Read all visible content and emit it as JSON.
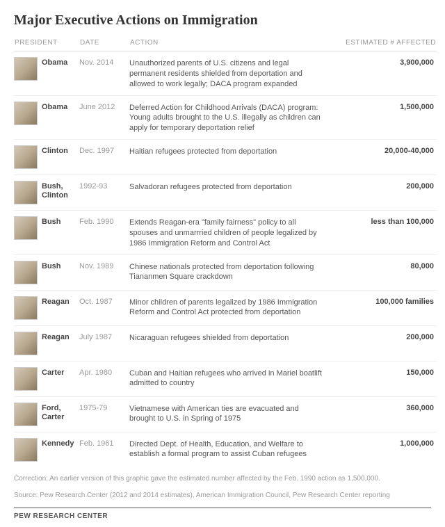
{
  "title": "Major Executive Actions on Immigration",
  "headers": {
    "president": "PRESIDENT",
    "date": "DATE",
    "action": "ACTION",
    "estimated": "ESTIMATED # AFFECTED"
  },
  "rows": [
    {
      "president": "Obama",
      "date": "Nov. 2014",
      "action": "Unauthorized parents of U.S. citizens and legal permanent residents shielded from deportation and allowed to work legally; DACA program expanded",
      "estimated": "3,900,000"
    },
    {
      "president": "Obama",
      "date": "June 2012",
      "action": "Deferred Action for Childhood Arrivals (DACA) program: Young adults brought to the U.S. illegally as children can apply for temporary deportation relief",
      "estimated": "1,500,000"
    },
    {
      "president": "Clinton",
      "date": "Dec. 1997",
      "action": "Haitian refugees protected from deportation",
      "estimated": "20,000-40,000"
    },
    {
      "president": "Bush, Clinton",
      "date": "1992-93",
      "action": "Salvadoran refugees protected from deportation",
      "estimated": "200,000"
    },
    {
      "president": "Bush",
      "date": "Feb. 1990",
      "action": "Extends Reagan-era \"family fairness\" policy to all spouses and unmarrried children of people legalized by 1986 Immigration Reform and Control Act",
      "estimated": "less than 100,000"
    },
    {
      "president": "Bush",
      "date": "Nov. 1989",
      "action": "Chinese nationals protected from deportation following Tiananmen Square crackdown",
      "estimated": "80,000"
    },
    {
      "president": "Reagan",
      "date": "Oct. 1987",
      "action": "Minor children of parents legalized by 1986 Immigration Reform and Control Act protected from deportation",
      "estimated": "100,000 families"
    },
    {
      "president": "Reagan",
      "date": "July 1987",
      "action": "Nicaraguan refugees shielded from deportation",
      "estimated": "200,000"
    },
    {
      "president": "Carter",
      "date": "Apr. 1980",
      "action": "Cuban and Haitian refugees who arrived in Mariel boatlift admitted to country",
      "estimated": "150,000"
    },
    {
      "president": "Ford, Carter",
      "date": "1975-79",
      "action": "Vietnamese with American ties are evacuated and brought to U.S. in Spring of 1975",
      "estimated": "360,000"
    },
    {
      "president": "Kennedy",
      "date": "Feb. 1961",
      "action": "Directed Dept. of Health, Education, and Welfare to establish a formal program to assist Cuban refugees",
      "estimated": "1,000,000"
    }
  ],
  "correction": "Correction: An earlier version of this graphic gave the estimated number affected by the Feb. 1990 action as 1,500,000.",
  "source": "Source: Pew Research Center (2012 and 2014 estimates), American Immigration Council, Pew Research Center reporting",
  "org": "PEW RESEARCH CENTER",
  "style": {
    "title_fontsize": 20,
    "header_fontsize": 10,
    "body_fontsize": 11,
    "footnote_fontsize": 10,
    "title_color": "#333333",
    "header_color": "#999999",
    "name_color": "#444444",
    "date_color": "#999999",
    "action_color": "#555555",
    "est_color": "#444444",
    "border_color": "#eeeeee",
    "background_color": "#ffffff"
  }
}
